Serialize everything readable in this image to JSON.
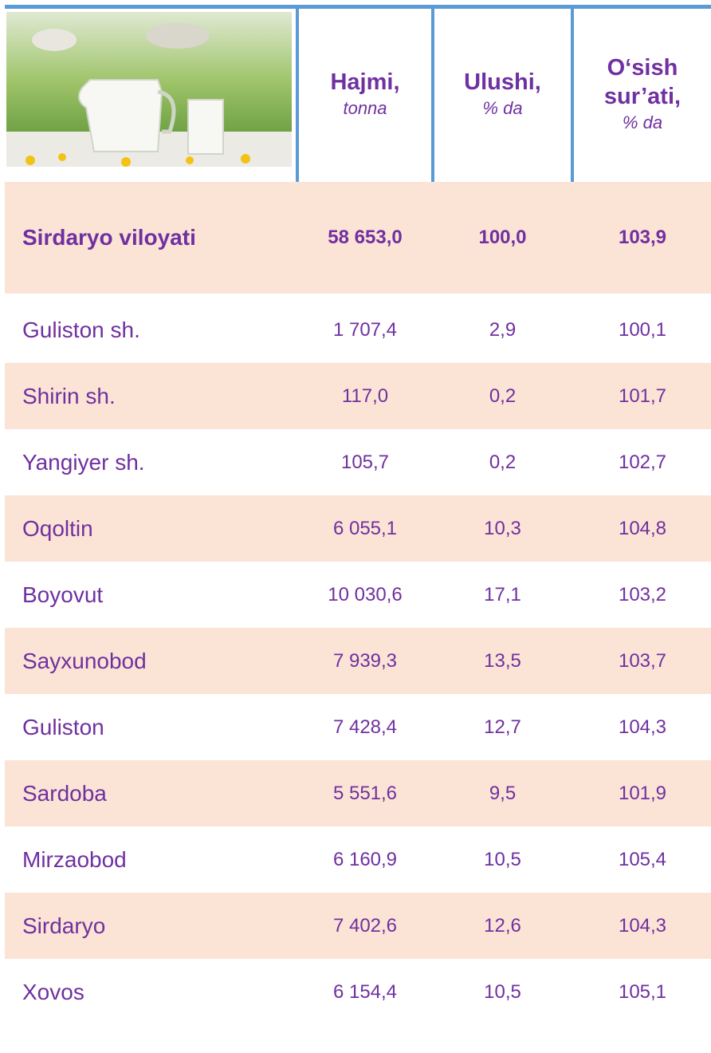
{
  "header": {
    "columns": [
      {
        "title": [
          "Hajmi,"
        ],
        "unit": "tonna"
      },
      {
        "title": [
          "Ulushi,"
        ],
        "unit": "% da"
      },
      {
        "title": [
          "O‘sish",
          "sur’ati,"
        ],
        "unit": "% da"
      }
    ]
  },
  "table": {
    "rows": [
      [
        "Sirdaryo viloyati",
        "58 653,0",
        "100,0",
        "103,9"
      ],
      [
        "Guliston sh.",
        "1 707,4",
        "2,9",
        "100,1"
      ],
      [
        "Shirin sh.",
        "117,0",
        "0,2",
        "101,7"
      ],
      [
        "Yangiyer sh.",
        "105,7",
        "0,2",
        "102,7"
      ],
      [
        "Oqoltin",
        "6 055,1",
        "10,3",
        "104,8"
      ],
      [
        "Boyovut",
        "10 030,6",
        "17,1",
        "103,2"
      ],
      [
        "Sayxunobod",
        "7 939,3",
        "13,5",
        "103,7"
      ],
      [
        "Guliston",
        "7 428,4",
        "12,7",
        "104,3"
      ],
      [
        "Sardoba",
        "5 551,6",
        "9,5",
        "101,9"
      ],
      [
        "Mirzaobod",
        "6 160,9",
        "10,5",
        "105,4"
      ],
      [
        "Sirdaryo",
        "7 402,6",
        "12,6",
        "104,3"
      ],
      [
        "Xovos",
        "6 154,4",
        "10,5",
        "105,1"
      ]
    ]
  }
}
